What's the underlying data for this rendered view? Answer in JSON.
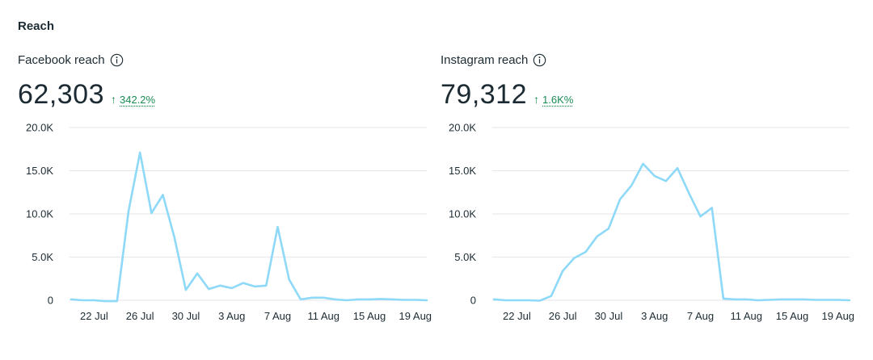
{
  "section_title": "Reach",
  "panels": [
    {
      "title": "Facebook reach",
      "value": "62,303",
      "delta": "342.2%",
      "delta_direction": "up"
    },
    {
      "title": "Instagram reach",
      "value": "79,312",
      "delta": "1.6K%",
      "delta_direction": "up"
    }
  ],
  "colors": {
    "line": "#8ed9f8",
    "grid": "#e4e6eb",
    "delta": "#1a8a53"
  },
  "chart_data": [
    {
      "type": "line",
      "title": "Facebook reach",
      "x_tick_labels": [
        "22 Jul",
        "26 Jul",
        "30 Jul",
        "3 Aug",
        "7 Aug",
        "11 Aug",
        "15 Aug",
        "19 Aug"
      ],
      "y_tick_labels": [
        "0",
        "5.0K",
        "10.0K",
        "15.0K",
        "20.0K"
      ],
      "ylim": [
        0,
        20000
      ],
      "grid": true,
      "x": [
        "20 Jul",
        "21 Jul",
        "22 Jul",
        "23 Jul",
        "24 Jul",
        "25 Jul",
        "26 Jul",
        "27 Jul",
        "28 Jul",
        "29 Jul",
        "30 Jul",
        "31 Jul",
        "1 Aug",
        "2 Aug",
        "3 Aug",
        "4 Aug",
        "5 Aug",
        "6 Aug",
        "7 Aug",
        "8 Aug",
        "9 Aug",
        "10 Aug",
        "11 Aug",
        "12 Aug",
        "13 Aug",
        "14 Aug",
        "15 Aug",
        "16 Aug",
        "17 Aug",
        "18 Aug",
        "19 Aug",
        "20 Aug"
      ],
      "values": [
        100,
        0,
        0,
        -100,
        -100,
        10300,
        17100,
        10100,
        12200,
        7300,
        1200,
        3100,
        1300,
        1700,
        1400,
        2000,
        1600,
        1700,
        8500,
        2400,
        100,
        300,
        300,
        100,
        0,
        100,
        100,
        150,
        100,
        50,
        50,
        0
      ]
    },
    {
      "type": "line",
      "title": "Instagram reach",
      "x_tick_labels": [
        "22 Jul",
        "26 Jul",
        "30 Jul",
        "3 Aug",
        "7 Aug",
        "11 Aug",
        "15 Aug",
        "19 Aug"
      ],
      "y_tick_labels": [
        "0",
        "5.0K",
        "10.0K",
        "15.0K",
        "20.0K"
      ],
      "ylim": [
        0,
        20000
      ],
      "grid": true,
      "x": [
        "20 Jul",
        "21 Jul",
        "22 Jul",
        "23 Jul",
        "24 Jul",
        "25 Jul",
        "26 Jul",
        "27 Jul",
        "28 Jul",
        "29 Jul",
        "30 Jul",
        "31 Jul",
        "1 Aug",
        "2 Aug",
        "3 Aug",
        "4 Aug",
        "5 Aug",
        "6 Aug",
        "7 Aug",
        "8 Aug",
        "9 Aug",
        "10 Aug",
        "11 Aug",
        "12 Aug",
        "13 Aug",
        "14 Aug",
        "15 Aug",
        "16 Aug",
        "17 Aug",
        "18 Aug",
        "19 Aug",
        "20 Aug"
      ],
      "values": [
        100,
        0,
        0,
        0,
        -50,
        500,
        3400,
        4900,
        5600,
        7400,
        8300,
        11700,
        13300,
        15800,
        14400,
        13800,
        15300,
        12400,
        9700,
        10700,
        200,
        100,
        100,
        0,
        50,
        100,
        100,
        100,
        50,
        50,
        50,
        0
      ]
    }
  ]
}
